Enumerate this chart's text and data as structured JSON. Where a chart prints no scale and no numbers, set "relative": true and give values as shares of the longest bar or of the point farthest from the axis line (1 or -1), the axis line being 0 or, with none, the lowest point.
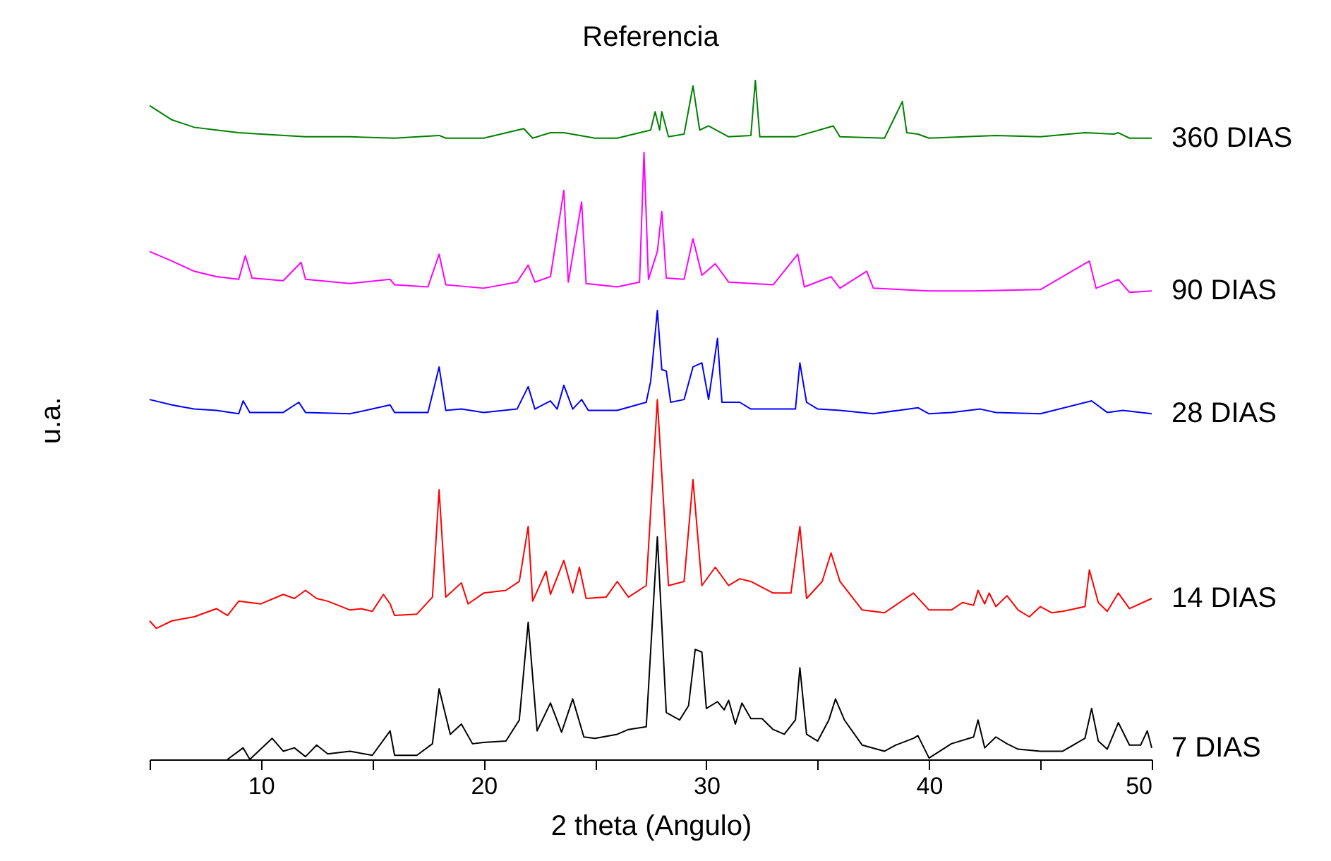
{
  "chart_data": {
    "type": "line",
    "title": "Referencia",
    "xlabel": "2 theta (Angulo)",
    "ylabel": "u.a.",
    "relative": true,
    "legend": false,
    "grid": false,
    "xlim": [
      5,
      50
    ],
    "xticks": [
      {
        "value": 5,
        "label": null
      },
      10,
      {
        "value": 15,
        "label": null
      },
      20,
      {
        "value": 25,
        "label": null
      },
      30,
      {
        "value": 35,
        "label": null
      },
      40,
      {
        "value": 45,
        "label": null
      },
      50
    ],
    "series": [
      {
        "name": "7 DIAS",
        "color": "#000000",
        "x": [
          8.5,
          9.2,
          9.5,
          10.5,
          11,
          11.5,
          12,
          12.5,
          13,
          14,
          15,
          15.8,
          16,
          17,
          17.7,
          18,
          18.5,
          19,
          19.5,
          20,
          21,
          21.6,
          22,
          22.4,
          23,
          23.5,
          24,
          24.5,
          25,
          26,
          26.5,
          27.3,
          27.8,
          28.2,
          28.8,
          29.2,
          29.5,
          29.8,
          30,
          30.5,
          30.8,
          31,
          31.3,
          31.6,
          32,
          32.5,
          33,
          33.5,
          34,
          34.2,
          34.5,
          35,
          35.5,
          35.8,
          36.2,
          37,
          38,
          38.5,
          39.3,
          39.5,
          40,
          41,
          42,
          42.2,
          42.5,
          43,
          43.5,
          44,
          45,
          45.5,
          46,
          47,
          47.3,
          47.6,
          48,
          48.5,
          49,
          49.5,
          49.8,
          50
        ],
        "values": [
          0,
          0.017,
          0,
          0.031,
          0.012,
          0.017,
          0.004,
          0.021,
          0.008,
          0.012,
          0.006,
          0.042,
          0.006,
          0.006,
          0.023,
          0.104,
          0.037,
          0.052,
          0.023,
          0.025,
          0.027,
          0.058,
          0.202,
          0.042,
          0.083,
          0.04,
          0.089,
          0.033,
          0.031,
          0.037,
          0.044,
          0.048,
          0.328,
          0.069,
          0.058,
          0.079,
          0.162,
          0.158,
          0.075,
          0.085,
          0.073,
          0.087,
          0.052,
          0.083,
          0.06,
          0.06,
          0.044,
          0.037,
          0.058,
          0.135,
          0.037,
          0.027,
          0.058,
          0.089,
          0.058,
          0.021,
          0.012,
          0.021,
          0.031,
          0.035,
          0.002,
          0.023,
          0.033,
          0.058,
          0.017,
          0.033,
          0.023,
          0.015,
          0.012,
          0.012,
          0.012,
          0.031,
          0.075,
          0.027,
          0.015,
          0.054,
          0.021,
          0.021,
          0.042,
          0.017
        ]
      },
      {
        "name": "14 DIAS",
        "color": "#ff0000",
        "x": [
          5,
          5.3,
          6,
          7,
          8,
          8.5,
          9,
          10,
          11,
          11.5,
          12,
          12.5,
          13,
          14,
          14.5,
          15,
          15.5,
          15.8,
          16,
          17,
          17.7,
          18,
          18.3,
          19,
          19.3,
          20,
          21,
          21.6,
          22,
          22.2,
          22.8,
          23,
          23.6,
          24,
          24.3,
          24.6,
          25.5,
          26,
          26.5,
          27.3,
          27.8,
          28.3,
          29,
          29.4,
          29.8,
          30.4,
          31,
          31.5,
          32,
          33,
          33.8,
          34.2,
          34.5,
          35.2,
          35.6,
          36,
          37,
          38,
          39.3,
          40,
          41,
          41.5,
          42,
          42.2,
          42.5,
          42.7,
          43,
          43.5,
          44,
          44.5,
          45,
          45.5,
          46,
          47,
          47.2,
          47.6,
          48,
          48.5,
          49,
          50
        ],
        "values": [
          0.204,
          0.193,
          0.204,
          0.21,
          0.222,
          0.212,
          0.233,
          0.229,
          0.243,
          0.237,
          0.249,
          0.237,
          0.233,
          0.22,
          0.222,
          0.218,
          0.243,
          0.229,
          0.212,
          0.214,
          0.239,
          0.397,
          0.239,
          0.26,
          0.229,
          0.245,
          0.249,
          0.262,
          0.343,
          0.233,
          0.277,
          0.243,
          0.293,
          0.245,
          0.283,
          0.237,
          0.239,
          0.262,
          0.239,
          0.256,
          0.53,
          0.256,
          0.262,
          0.412,
          0.256,
          0.283,
          0.256,
          0.266,
          0.262,
          0.245,
          0.245,
          0.343,
          0.237,
          0.262,
          0.304,
          0.262,
          0.22,
          0.216,
          0.245,
          0.22,
          0.22,
          0.231,
          0.227,
          0.249,
          0.229,
          0.245,
          0.225,
          0.241,
          0.22,
          0.21,
          0.225,
          0.216,
          0.218,
          0.225,
          0.279,
          0.231,
          0.218,
          0.245,
          0.222,
          0.237
        ]
      },
      {
        "name": "28 DIAS",
        "color": "#0000ff",
        "x": [
          5,
          6,
          7,
          8,
          9,
          9.2,
          9.5,
          11,
          11.7,
          12,
          14,
          15.8,
          16,
          17.5,
          18,
          18.3,
          19,
          20,
          21.5,
          22,
          22.3,
          23,
          23.3,
          23.6,
          24,
          24.4,
          24.7,
          26,
          27.3,
          27.5,
          27.8,
          28,
          28.2,
          28.4,
          29,
          29.4,
          29.8,
          30.1,
          30.5,
          30.7,
          31.5,
          32,
          34,
          34.2,
          34.5,
          35,
          36,
          37.5,
          39.5,
          40,
          41,
          42.3,
          43,
          45,
          47.3,
          48,
          48.7,
          50
        ],
        "values": [
          0.53,
          0.522,
          0.516,
          0.514,
          0.509,
          0.528,
          0.511,
          0.511,
          0.526,
          0.511,
          0.509,
          0.522,
          0.511,
          0.511,
          0.578,
          0.514,
          0.516,
          0.511,
          0.516,
          0.549,
          0.516,
          0.528,
          0.516,
          0.551,
          0.516,
          0.53,
          0.514,
          0.514,
          0.526,
          0.557,
          0.661,
          0.574,
          0.572,
          0.526,
          0.53,
          0.578,
          0.584,
          0.53,
          0.62,
          0.526,
          0.526,
          0.516,
          0.516,
          0.584,
          0.526,
          0.516,
          0.514,
          0.509,
          0.518,
          0.509,
          0.511,
          0.516,
          0.511,
          0.509,
          0.528,
          0.511,
          0.514,
          0.509
        ]
      },
      {
        "name": "90 DIAS",
        "color": "#ff00ff",
        "x": [
          5,
          6,
          7,
          8,
          9,
          9.3,
          9.6,
          11,
          11.8,
          12,
          14,
          15.8,
          16,
          17.5,
          18,
          18.3,
          20,
          21.5,
          22,
          22.3,
          23,
          23.6,
          23.8,
          24.4,
          24.6,
          26,
          27,
          27.2,
          27.4,
          27.8,
          28,
          28.2,
          29,
          29.4,
          29.8,
          30.4,
          31,
          33,
          34.1,
          34.4,
          35.6,
          36,
          37.2,
          37.5,
          40,
          42,
          45,
          47.2,
          47.5,
          48.5,
          49,
          50
        ],
        "values": [
          0.748,
          0.734,
          0.719,
          0.711,
          0.707,
          0.742,
          0.709,
          0.705,
          0.732,
          0.707,
          0.701,
          0.707,
          0.699,
          0.696,
          0.744,
          0.699,
          0.694,
          0.703,
          0.728,
          0.703,
          0.711,
          0.838,
          0.703,
          0.821,
          0.701,
          0.696,
          0.703,
          0.894,
          0.707,
          0.748,
          0.807,
          0.709,
          0.707,
          0.767,
          0.713,
          0.73,
          0.703,
          0.699,
          0.744,
          0.696,
          0.711,
          0.694,
          0.719,
          0.694,
          0.69,
          0.69,
          0.692,
          0.734,
          0.694,
          0.707,
          0.688,
          0.69
        ]
      },
      {
        "name": "360 DIAS",
        "color": "#008000",
        "x": [
          5,
          6,
          7,
          8,
          9,
          10,
          12,
          14,
          16,
          18,
          18.3,
          20,
          21.8,
          22.2,
          23,
          23.6,
          25,
          26,
          27.5,
          27.7,
          27.9,
          28,
          28.3,
          29,
          29.4,
          29.7,
          30.1,
          31,
          32,
          32.2,
          32.4,
          34,
          35.7,
          36,
          38,
          38.8,
          39,
          39.5,
          40,
          43,
          45,
          47,
          48.3,
          48.5,
          49,
          50
        ],
        "values": [
          0.963,
          0.942,
          0.931,
          0.927,
          0.923,
          0.921,
          0.917,
          0.917,
          0.915,
          0.919,
          0.915,
          0.915,
          0.929,
          0.915,
          0.923,
          0.923,
          0.915,
          0.915,
          0.927,
          0.954,
          0.927,
          0.954,
          0.917,
          0.921,
          0.992,
          0.927,
          0.933,
          0.917,
          0.919,
          1,
          0.917,
          0.917,
          0.933,
          0.917,
          0.915,
          0.969,
          0.923,
          0.921,
          0.915,
          0.919,
          0.917,
          0.923,
          0.921,
          0.923,
          0.915,
          0.915
        ]
      }
    ]
  }
}
